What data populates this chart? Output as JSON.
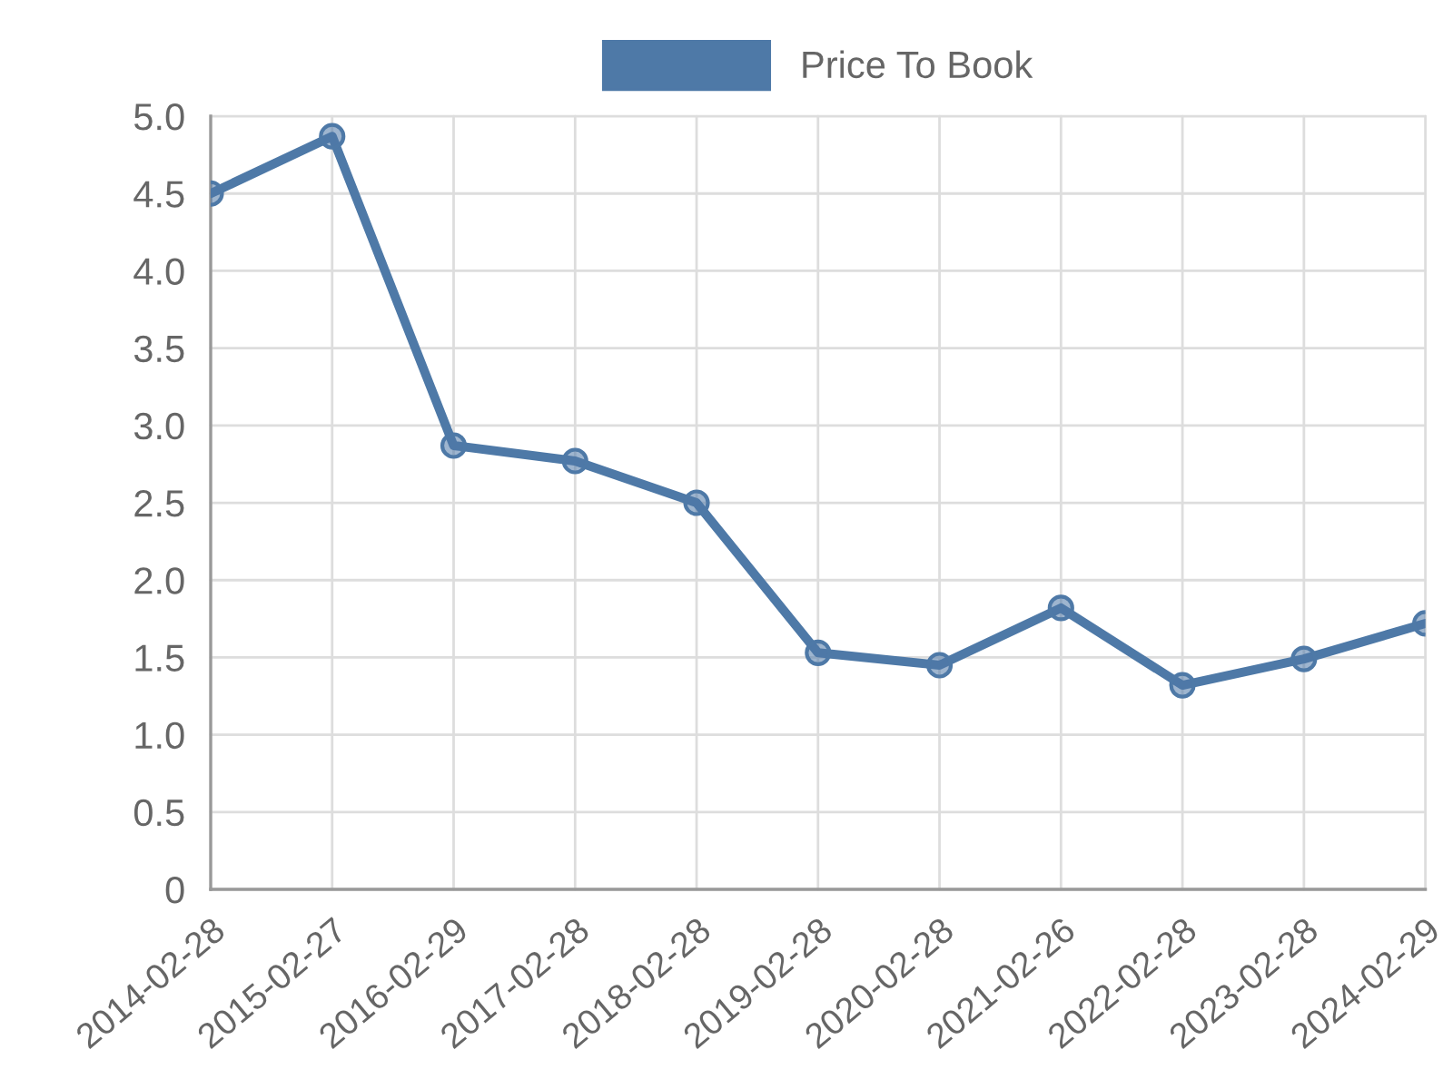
{
  "chart_data": {
    "type": "line",
    "categories": [
      "2014-02-28",
      "2015-02-27",
      "2016-02-29",
      "2017-02-28",
      "2018-02-28",
      "2019-02-28",
      "2020-02-28",
      "2021-02-26",
      "2022-02-28",
      "2023-02-28",
      "2024-02-29"
    ],
    "series": [
      {
        "name": "Price To Book",
        "color": "#4e79a7",
        "values": [
          4.5,
          4.87,
          2.87,
          2.77,
          2.5,
          1.53,
          1.45,
          1.82,
          1.32,
          1.49,
          1.72
        ]
      }
    ],
    "ylim": [
      0,
      5
    ],
    "yticks": [
      0,
      0.5,
      {
        "value": 1,
        "label": "1.0"
      },
      1.5,
      {
        "value": 2,
        "label": "2.0"
      },
      2.5,
      {
        "value": 3,
        "label": "3.0"
      },
      3.5,
      {
        "value": 4,
        "label": "4.0"
      },
      4.5,
      {
        "value": 5,
        "label": "5.0"
      }
    ],
    "grid": true,
    "legend": "top",
    "marker": "circle",
    "line_style": "solid"
  }
}
